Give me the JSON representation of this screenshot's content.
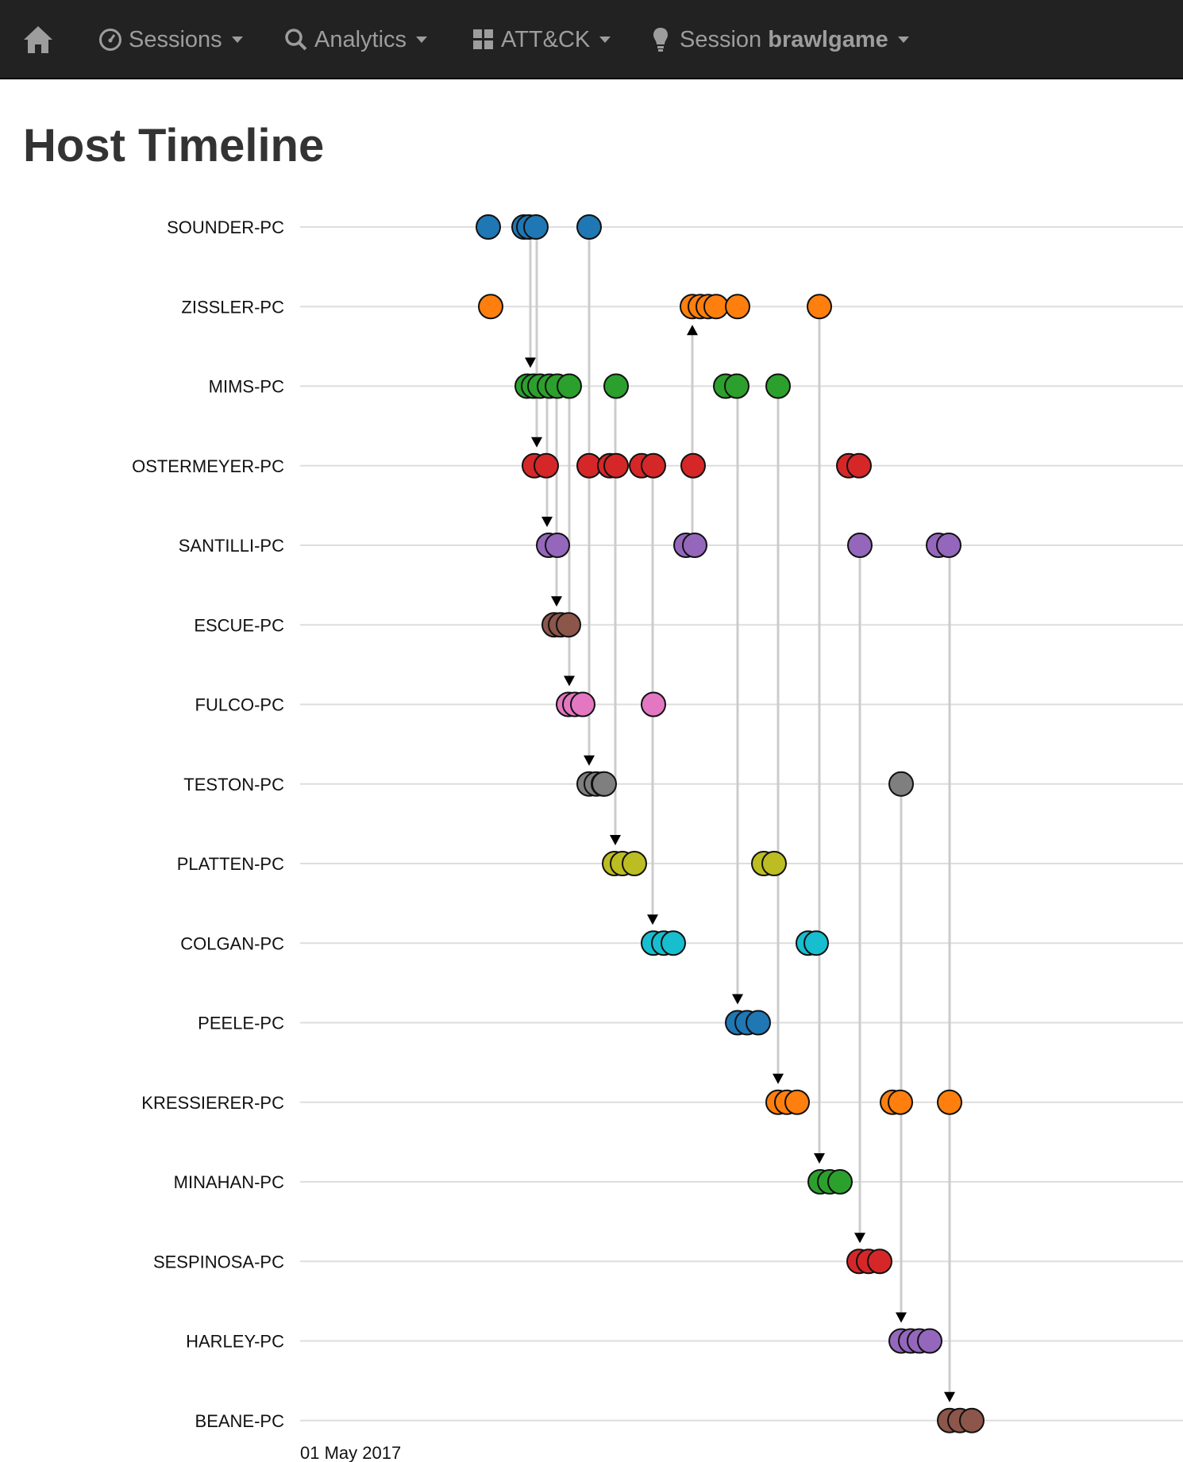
{
  "navbar": {
    "items": [
      {
        "key": "home",
        "icon": "home-icon",
        "label": ""
      },
      {
        "key": "sessions",
        "icon": "dashboard-icon",
        "label": "Sessions"
      },
      {
        "key": "analytics",
        "icon": "search-icon",
        "label": "Analytics"
      },
      {
        "key": "attack",
        "icon": "grid-icon",
        "label": "ATT&CK"
      },
      {
        "key": "session",
        "icon": "lightbulb-icon",
        "label_prefix": "Session",
        "label_bold": "brawlgame"
      }
    ]
  },
  "page": {
    "title": "Host Timeline"
  },
  "timeline": {
    "date_label": "01 May 2017",
    "hosts": [
      {
        "name": "SOUNDER-PC",
        "color": "#1f77b4"
      },
      {
        "name": "ZISSLER-PC",
        "color": "#ff7f0e"
      },
      {
        "name": "MIMS-PC",
        "color": "#2ca02c"
      },
      {
        "name": "OSTERMEYER-PC",
        "color": "#d62728"
      },
      {
        "name": "SANTILLI-PC",
        "color": "#9467bd"
      },
      {
        "name": "ESCUE-PC",
        "color": "#8c564b"
      },
      {
        "name": "FULCO-PC",
        "color": "#e377c2"
      },
      {
        "name": "TESTON-PC",
        "color": "#7f7f7f"
      },
      {
        "name": "PLATTEN-PC",
        "color": "#bcbd22"
      },
      {
        "name": "COLGAN-PC",
        "color": "#17becf"
      },
      {
        "name": "PEELE-PC",
        "color": "#1f77b4"
      },
      {
        "name": "KRESSIERER-PC",
        "color": "#ff7f0e"
      },
      {
        "name": "MINAHAN-PC",
        "color": "#2ca02c"
      },
      {
        "name": "SESPINOSA-PC",
        "color": "#d62728"
      },
      {
        "name": "HARLEY-PC",
        "color": "#9467bd"
      },
      {
        "name": "BEANE-PC",
        "color": "#8c564b"
      }
    ]
  }
}
